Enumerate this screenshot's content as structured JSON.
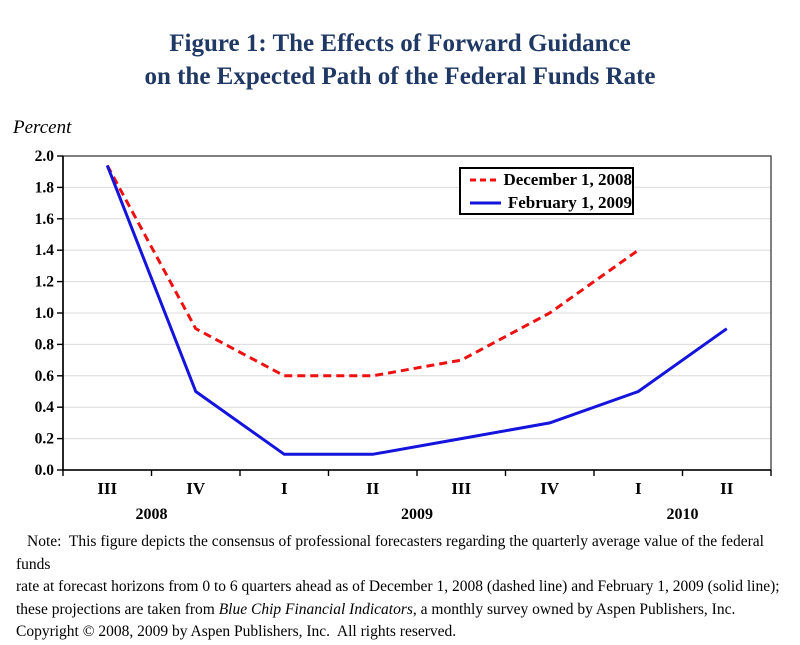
{
  "title": {
    "line1": "Figure 1: The Effects of Forward Guidance",
    "line2": "on the Expected Path of the Federal Funds Rate"
  },
  "y_axis_unit": "Percent",
  "colors": {
    "title_blue": "#1f3864",
    "dashed_line_red": "#ee1111",
    "solid_line_blue": "#1414dd",
    "gridline_gray": "#dcdcdc",
    "plot_border_gray": "#3c3c3c",
    "axis_black": "#000000"
  },
  "chart_data": {
    "type": "line",
    "title": "Figure 1: The Effects of Forward Guidance on the Expected Path of the Federal Funds Rate",
    "ylabel": "Percent",
    "xlabel": "",
    "grid": true,
    "legend_position": "top-right",
    "ylim": [
      0.0,
      2.0
    ],
    "ytick_step": 0.2,
    "ytick_labels": [
      "0.0",
      "0.2",
      "0.4",
      "0.6",
      "0.8",
      "1.0",
      "1.2",
      "1.4",
      "1.6",
      "1.8",
      "2.0"
    ],
    "categories": [
      "III",
      "IV",
      "I",
      "II",
      "III",
      "IV",
      "I",
      "II"
    ],
    "year_labels": [
      {
        "label": "2008",
        "boundary_index": 1
      },
      {
        "label": "2009",
        "boundary_index": 4
      },
      {
        "label": "2010",
        "boundary_index": 7
      }
    ],
    "series": [
      {
        "name": "December 1, 2008",
        "style": "dashed",
        "color": "#ee1111",
        "values": [
          1.94,
          0.9,
          0.6,
          0.6,
          0.7,
          1.0,
          1.4,
          null
        ]
      },
      {
        "name": "February 1, 2009",
        "style": "solid",
        "color": "#1414dd",
        "values": [
          1.94,
          0.5,
          0.1,
          0.1,
          0.2,
          0.3,
          0.5,
          0.9
        ]
      }
    ]
  },
  "note": {
    "line1": "Note:  This figure depicts the consensus of professional forecasters regarding the quarterly average value of the federal funds",
    "line2": "rate at forecast horizons from 0 to 6 quarters ahead as of December 1, 2008 (dashed line) and February 1, 2009 (solid line);",
    "line3_pre": "these projections are taken from ",
    "line3_italic": "Blue Chip Financial Indicators",
    "line3_post": ", a monthly survey owned by Aspen Publishers, Inc.",
    "line4": "Copyright © 2008, 2009 by Aspen Publishers, Inc.  All rights reserved."
  }
}
